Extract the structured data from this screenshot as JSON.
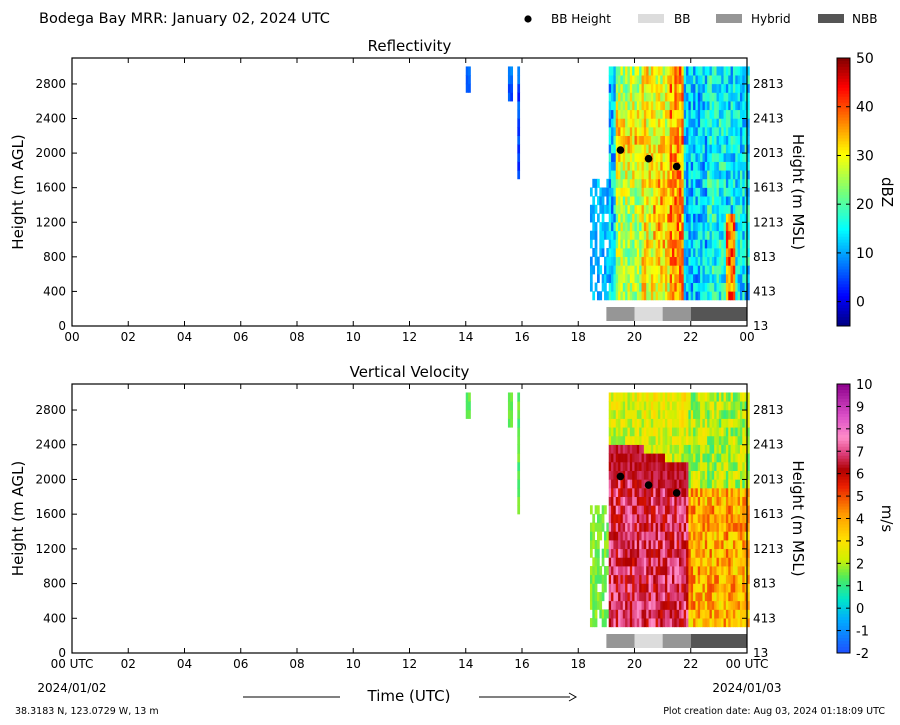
{
  "header": {
    "title": "Bodega Bay MRR:  January 02, 2024 UTC",
    "legend": [
      {
        "label": "BB Height",
        "color": "#000000",
        "marker": "dot"
      },
      {
        "label": "BB",
        "color": "#dcdcdc",
        "marker": "rect"
      },
      {
        "label": "Hybrid",
        "color": "#969696",
        "marker": "rect"
      },
      {
        "label": "NBB",
        "color": "#555555",
        "marker": "rect"
      }
    ]
  },
  "footer": {
    "location": "38.3183 N, 123.0729 W, 13 m",
    "creation": "Plot creation date: Aug 03, 2024 01:18:09 UTC",
    "xaxis_title": "Time (UTC)",
    "start_label": "00 UTC",
    "start_date": "2024/01/02",
    "end_label": "00 UTC",
    "end_date": "2024/01/03"
  },
  "chart_data": [
    {
      "type": "heatmap",
      "title": "Reflectivity",
      "ylabel": "Height (m AGL)",
      "ylabel_right": "Height (m MSL)",
      "xlim": [
        0,
        24
      ],
      "ylim": [
        0,
        3100
      ],
      "x_ticks": [
        "00",
        "02",
        "04",
        "06",
        "08",
        "10",
        "12",
        "14",
        "16",
        "18",
        "20",
        "22",
        "00"
      ],
      "y_ticks": [
        0,
        400,
        800,
        1200,
        1600,
        2000,
        2400,
        2800
      ],
      "y_ticks_right": [
        "13",
        "413",
        "813",
        "1213",
        "1613",
        "2013",
        "2413",
        "2813"
      ],
      "colorbar": {
        "label": "dBZ",
        "range": [
          -5,
          50
        ],
        "ticks": [
          0,
          10,
          20,
          30,
          40,
          50
        ],
        "colormap": "jet"
      },
      "bb_height": [
        {
          "time": 19.5,
          "height": 2035
        },
        {
          "time": 20.5,
          "height": 1935
        },
        {
          "time": 21.5,
          "height": 1845
        }
      ],
      "precip_type": [
        {
          "start": 19.0,
          "end": 20.0,
          "type": "Hybrid"
        },
        {
          "start": 20.0,
          "end": 21.0,
          "type": "BB"
        },
        {
          "start": 21.0,
          "end": 22.0,
          "type": "Hybrid"
        },
        {
          "start": 22.0,
          "end": 24.0,
          "type": "NBB"
        }
      ]
    },
    {
      "type": "heatmap",
      "title": "Vertical Velocity",
      "ylabel": "Height (m AGL)",
      "ylabel_right": "Height (m MSL)",
      "xlim": [
        0,
        24
      ],
      "ylim": [
        0,
        3100
      ],
      "x_ticks": [
        "00 UTC",
        "02",
        "04",
        "06",
        "08",
        "10",
        "12",
        "14",
        "16",
        "18",
        "20",
        "22",
        "00 UTC"
      ],
      "y_ticks": [
        0,
        400,
        800,
        1200,
        1600,
        2000,
        2400,
        2800
      ],
      "y_ticks_right": [
        "13",
        "413",
        "813",
        "1213",
        "1613",
        "2013",
        "2413",
        "2813"
      ],
      "colorbar": {
        "label": "m/s",
        "range": [
          -2,
          10
        ],
        "ticks": [
          -2,
          -1,
          0,
          1,
          2,
          3,
          4,
          5,
          6,
          7,
          8,
          9,
          10
        ],
        "colormap": "velocity"
      },
      "bb_height": [
        {
          "time": 19.5,
          "height": 2035
        },
        {
          "time": 20.5,
          "height": 1935
        },
        {
          "time": 21.5,
          "height": 1845
        }
      ],
      "precip_type": [
        {
          "start": 19.0,
          "end": 20.0,
          "type": "Hybrid"
        },
        {
          "start": 20.0,
          "end": 21.0,
          "type": "BB"
        },
        {
          "start": 21.0,
          "end": 22.0,
          "type": "Hybrid"
        },
        {
          "start": 22.0,
          "end": 24.0,
          "type": "NBB"
        }
      ]
    }
  ]
}
